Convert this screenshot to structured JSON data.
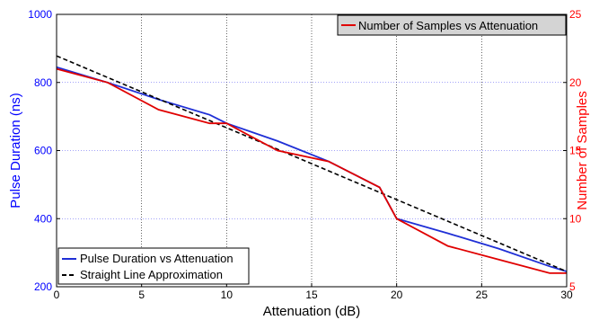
{
  "chart_data": {
    "type": "line",
    "xlabel": "Attenuation (dB)",
    "ylabel_left": "Pulse Duration (ns)",
    "ylabel_right": "Number of Samples",
    "xlim": [
      0,
      30
    ],
    "ylim_left": [
      200,
      1000
    ],
    "ylim_right": [
      5,
      25
    ],
    "x_ticks": [
      0,
      5,
      10,
      15,
      20,
      25,
      30
    ],
    "y_ticks_left": [
      200,
      400,
      600,
      800,
      1000
    ],
    "y_ticks_right": [
      5,
      10,
      15,
      20,
      25
    ],
    "grid": true,
    "colors": {
      "left_axis": "#0000ff",
      "right_axis": "#ff0000",
      "pulse": "#1f2fd6",
      "samples": "#e00000",
      "approx": "#000000",
      "x_grid": "#000000",
      "y_grid": "#4a4af0"
    },
    "series": [
      {
        "name": "Pulse Duration vs Attenuation",
        "axis": "left",
        "style": "solid",
        "color": "#1f2fd6",
        "x": [
          0,
          3,
          6,
          9,
          10,
          13,
          16,
          19,
          20,
          23,
          26,
          29,
          30
        ],
        "y": [
          845,
          800,
          750,
          705,
          680,
          628,
          568,
          492,
          400,
          357,
          312,
          260,
          245
        ]
      },
      {
        "name": "Straight Line Approximation",
        "axis": "left",
        "style": "dashed",
        "color": "#000000",
        "x": [
          0,
          30
        ],
        "y": [
          878,
          245
        ]
      },
      {
        "name": "Number of Samples vs Attenuation",
        "axis": "right",
        "style": "solid",
        "color": "#e00000",
        "x": [
          0,
          3,
          6,
          9,
          10,
          13,
          16,
          19,
          20,
          23,
          26,
          29,
          30
        ],
        "y": [
          21,
          20,
          18,
          17,
          17,
          15,
          14.2,
          12.3,
          10,
          8,
          7,
          6,
          6
        ]
      }
    ],
    "legend_left": {
      "placement": "bottom-left",
      "entries": [
        "Pulse Duration vs Attenuation",
        "Straight Line Approximation"
      ]
    },
    "legend_right": {
      "placement": "top-right",
      "entries": [
        "Number of Samples vs Attenuation"
      ]
    }
  }
}
